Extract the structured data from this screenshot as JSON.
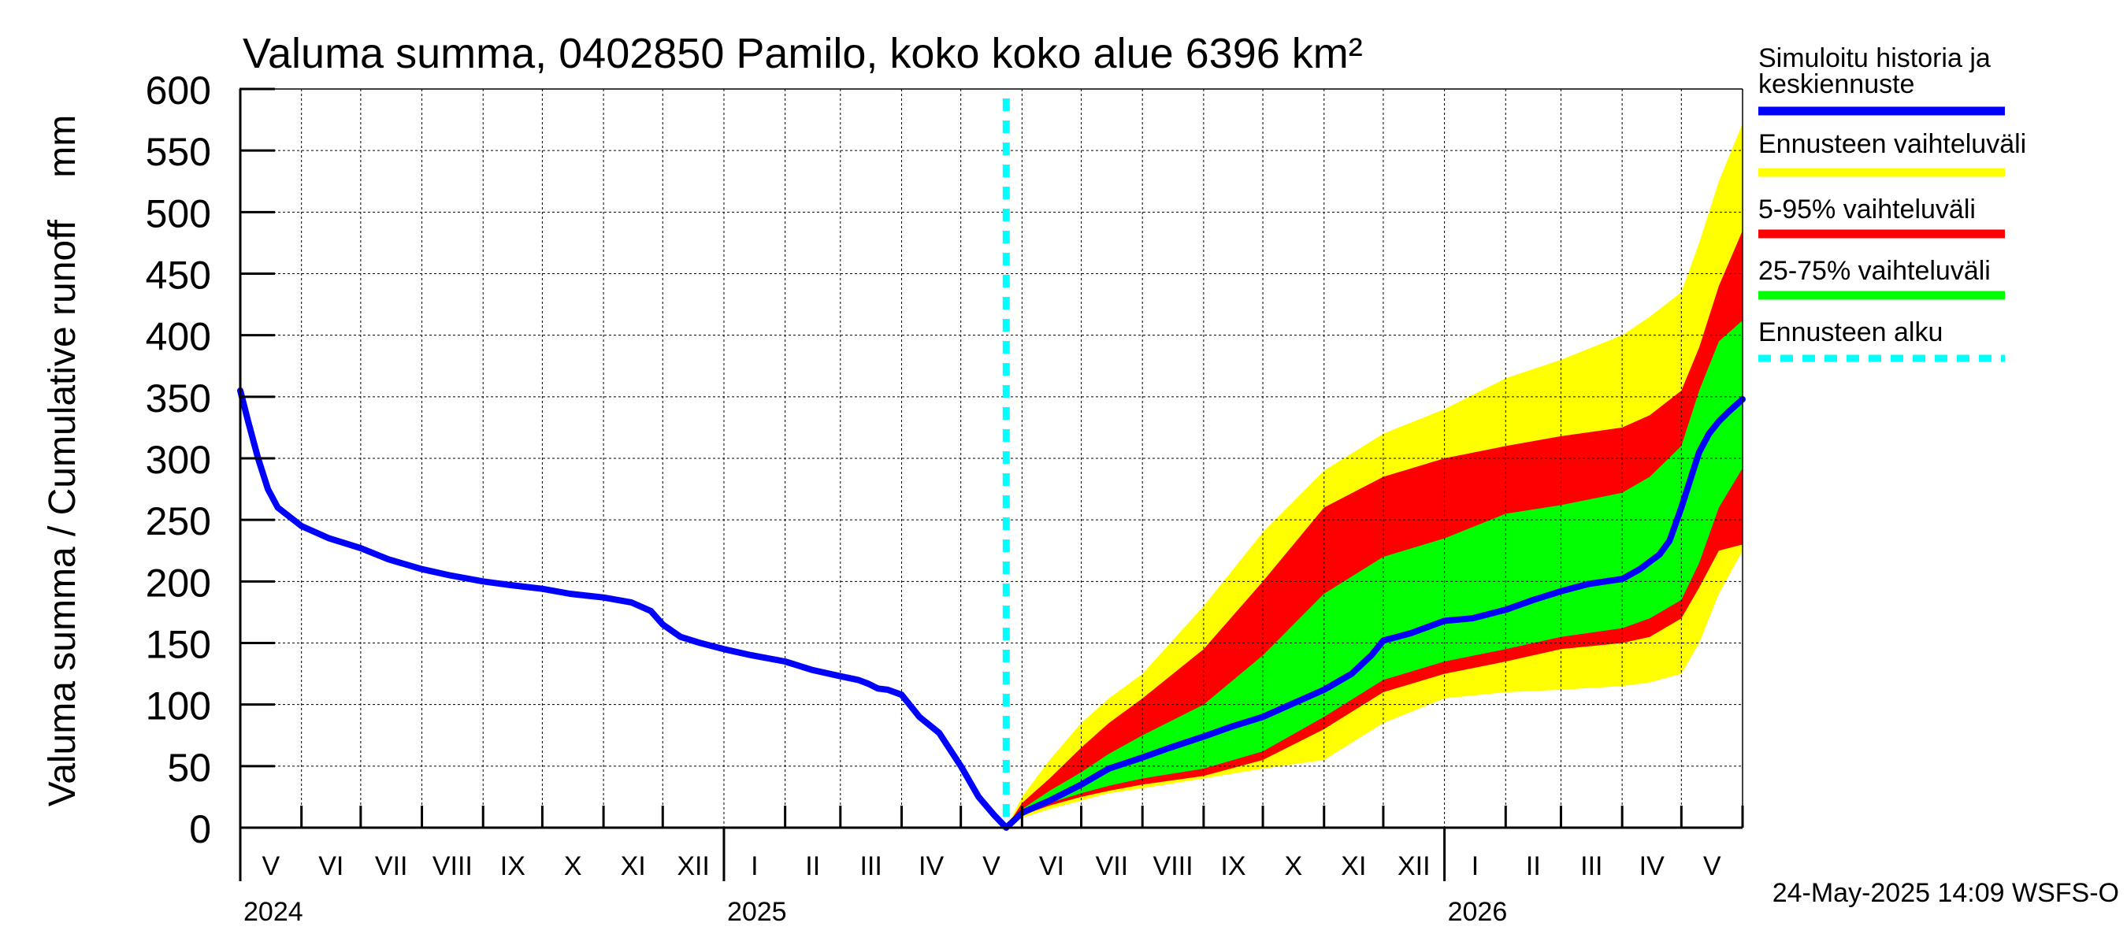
{
  "chart_data": {
    "type": "area",
    "title": "Valuma summa, 0402850 Pamilo, koko koko alue 6396 km²",
    "ylabel": "Valuma summa / Cumulative runoff    mm",
    "ylim": [
      0,
      600
    ],
    "yticks": [
      0,
      50,
      100,
      150,
      200,
      250,
      300,
      350,
      400,
      450,
      500,
      550,
      600
    ],
    "x_range": [
      "2024-05-01",
      "2026-06-01"
    ],
    "month_labels": [
      "V",
      "VI",
      "VII",
      "VIII",
      "IX",
      "X",
      "XI",
      "XII",
      "I",
      "II",
      "III",
      "IV",
      "V",
      "VI",
      "VII",
      "VIII",
      "IX",
      "X",
      "XI",
      "XII",
      "I",
      "II",
      "III",
      "IV",
      "V"
    ],
    "year_labels": [
      "2024",
      "2025",
      "2026"
    ],
    "forecast_start": "2025-05-24",
    "footer": "24-May-2025 14:09 WSFS-O",
    "legend": [
      {
        "label": "Simuloitu historia ja",
        "label2": "keskiennuste",
        "color": "#0000ff",
        "style": "solid"
      },
      {
        "label": "Ennusteen vaihteluväli",
        "color": "#ffff00",
        "style": "solid"
      },
      {
        "label": "5-95% vaihteluväli",
        "color": "#ff0000",
        "style": "solid"
      },
      {
        "label": "25-75% vaihteluväli",
        "color": "#00ff00",
        "style": "solid"
      },
      {
        "label": "Ennusteen alku",
        "color": "#00ffff",
        "style": "dashed"
      }
    ],
    "series": [
      {
        "name": "Simuloitu historia ja keskiennuste",
        "color": "#0000ff",
        "x": [
          "2024-05-01",
          "2024-05-05",
          "2024-05-10",
          "2024-05-15",
          "2024-05-20",
          "2024-06-01",
          "2024-06-15",
          "2024-07-01",
          "2024-07-15",
          "2024-08-01",
          "2024-08-15",
          "2024-09-01",
          "2024-09-15",
          "2024-10-01",
          "2024-10-15",
          "2024-11-01",
          "2024-11-15",
          "2024-11-25",
          "2024-12-01",
          "2024-12-10",
          "2024-12-20",
          "2025-01-01",
          "2025-01-15",
          "2025-02-01",
          "2025-02-15",
          "2025-03-01",
          "2025-03-10",
          "2025-03-15",
          "2025-03-20",
          "2025-03-25",
          "2025-04-01",
          "2025-04-10",
          "2025-04-20",
          "2025-05-01",
          "2025-05-10",
          "2025-05-18",
          "2025-05-24",
          "2025-06-01",
          "2025-06-15",
          "2025-07-01",
          "2025-07-15",
          "2025-08-01",
          "2025-08-15",
          "2025-09-01",
          "2025-09-15",
          "2025-10-01",
          "2025-10-15",
          "2025-11-01",
          "2025-11-15",
          "2025-11-25",
          "2025-12-01",
          "2025-12-15",
          "2026-01-01",
          "2026-01-15",
          "2026-02-01",
          "2026-02-15",
          "2026-03-01",
          "2026-03-15",
          "2026-04-01",
          "2026-04-10",
          "2026-04-20",
          "2026-04-25",
          "2026-05-01",
          "2026-05-05",
          "2026-05-10",
          "2026-05-15",
          "2026-05-20",
          "2026-05-25",
          "2026-06-01"
        ],
        "values": [
          355,
          330,
          300,
          275,
          260,
          245,
          235,
          227,
          218,
          210,
          205,
          200,
          197,
          194,
          190,
          187,
          183,
          176,
          165,
          155,
          150,
          145,
          140,
          135,
          128,
          123,
          120,
          117,
          113,
          112,
          108,
          90,
          77,
          50,
          25,
          10,
          0,
          12,
          22,
          35,
          48,
          57,
          65,
          74,
          82,
          90,
          100,
          112,
          125,
          140,
          152,
          158,
          168,
          170,
          177,
          185,
          192,
          198,
          202,
          210,
          222,
          233,
          260,
          280,
          305,
          320,
          330,
          338,
          348
        ]
      }
    ],
    "bands": [
      {
        "name": "Ennusteen vaihteluväli",
        "color": "#ffff00",
        "x": [
          "2025-05-24",
          "2025-06-01",
          "2025-06-15",
          "2025-07-01",
          "2025-07-15",
          "2025-08-01",
          "2025-09-01",
          "2025-10-01",
          "2025-11-01",
          "2025-12-01",
          "2026-01-01",
          "2026-02-01",
          "2026-03-01",
          "2026-04-01",
          "2026-04-15",
          "2026-05-01",
          "2026-05-10",
          "2026-05-20",
          "2026-06-01"
        ],
        "upper": [
          0,
          25,
          55,
          85,
          105,
          125,
          180,
          240,
          290,
          320,
          340,
          365,
          380,
          400,
          415,
          435,
          475,
          525,
          572
        ],
        "lower": [
          0,
          8,
          15,
          22,
          28,
          32,
          40,
          48,
          55,
          85,
          105,
          110,
          112,
          115,
          118,
          125,
          150,
          190,
          225
        ]
      },
      {
        "name": "5-95% vaihteluväli",
        "color": "#ff0000",
        "x": [
          "2025-05-24",
          "2025-06-01",
          "2025-06-15",
          "2025-07-01",
          "2025-07-15",
          "2025-08-01",
          "2025-09-01",
          "2025-10-01",
          "2025-11-01",
          "2025-12-01",
          "2026-01-01",
          "2026-02-01",
          "2026-03-01",
          "2026-04-01",
          "2026-04-15",
          "2026-05-01",
          "2026-05-10",
          "2026-05-20",
          "2026-06-01"
        ],
        "upper": [
          0,
          20,
          40,
          65,
          85,
          105,
          145,
          200,
          260,
          285,
          300,
          310,
          318,
          325,
          335,
          355,
          390,
          440,
          485
        ],
        "lower": [
          0,
          10,
          18,
          25,
          30,
          35,
          42,
          55,
          80,
          110,
          125,
          135,
          145,
          150,
          155,
          170,
          195,
          225,
          230
        ]
      },
      {
        "name": "25-75% vaihteluväli",
        "color": "#00ff00",
        "x": [
          "2025-05-24",
          "2025-06-01",
          "2025-06-15",
          "2025-07-01",
          "2025-07-15",
          "2025-08-01",
          "2025-09-01",
          "2025-10-01",
          "2025-11-01",
          "2025-12-01",
          "2026-01-01",
          "2026-02-01",
          "2026-03-01",
          "2026-04-01",
          "2026-04-15",
          "2026-05-01",
          "2026-05-10",
          "2026-05-20",
          "2026-06-01"
        ],
        "upper": [
          0,
          15,
          30,
          45,
          60,
          75,
          100,
          140,
          190,
          220,
          235,
          255,
          262,
          272,
          285,
          310,
          355,
          395,
          412
        ],
        "lower": [
          0,
          12,
          20,
          28,
          34,
          40,
          48,
          62,
          90,
          120,
          135,
          145,
          155,
          162,
          170,
          185,
          215,
          260,
          292
        ]
      }
    ]
  }
}
